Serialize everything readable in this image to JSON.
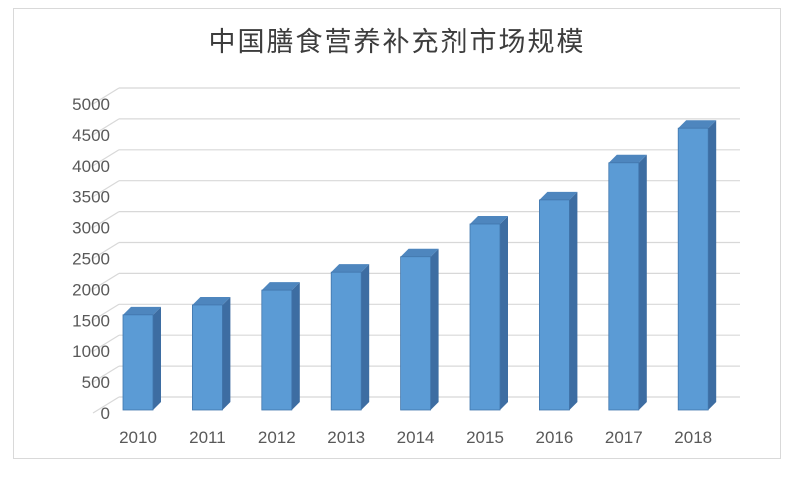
{
  "title": "中国膳食营养补充剂市场规模",
  "colors": {
    "background": "#ffffff",
    "frame_border": "#d9d9d9",
    "gridline": "#d8d8d8",
    "axis_text": "#595959",
    "title_text": "#3d3d3d",
    "bar_front": "#5b9bd5",
    "bar_top": "#4e86be",
    "bar_side": "#3d6da2",
    "bar_edge": "#4176ac"
  },
  "chart_data": {
    "type": "bar",
    "projection": "3d",
    "title": "中国膳食营养补充剂市场规模",
    "categories": [
      "2010",
      "2011",
      "2012",
      "2013",
      "2014",
      "2015",
      "2016",
      "2017",
      "2018"
    ],
    "values": [
      1540,
      1700,
      1940,
      2230,
      2480,
      3010,
      3400,
      4000,
      4560
    ],
    "xlabel": "",
    "ylabel": "",
    "ylim": [
      0,
      5000
    ],
    "ytick_step": 500,
    "yticks": [
      0,
      500,
      1000,
      1500,
      2000,
      2500,
      3000,
      3500,
      4000,
      4500,
      5000
    ],
    "grid": true,
    "legend": false
  }
}
